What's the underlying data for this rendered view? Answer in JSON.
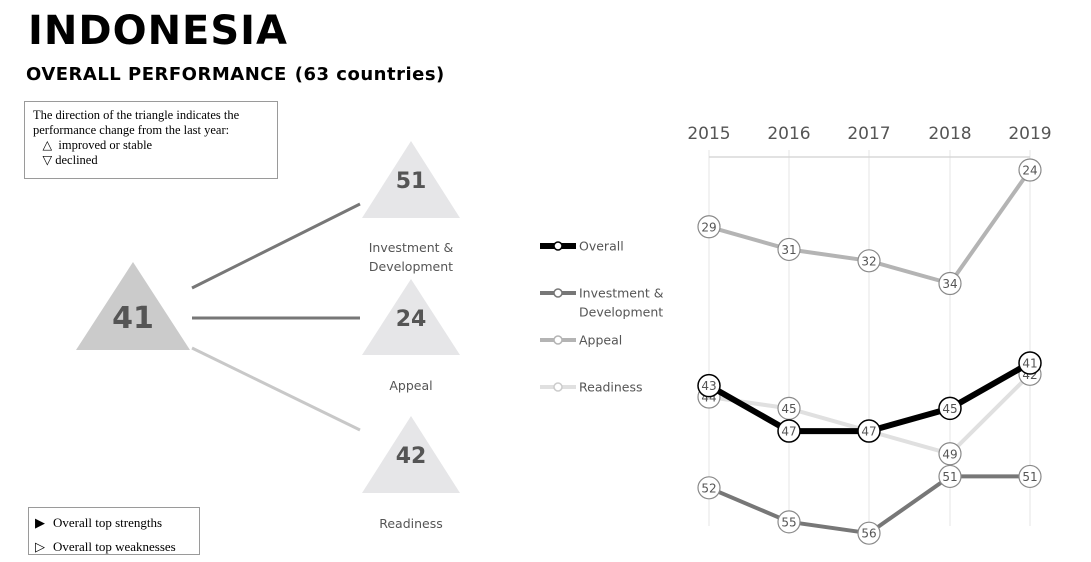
{
  "header": {
    "title": "INDONESIA",
    "subtitle": "OVERALL PERFORMANCE",
    "subtitle_count": "(63 countries)"
  },
  "note": {
    "line1": "The direction of the triangle indicates the",
    "line2": "performance change from the last year:",
    "up_symbol": "△",
    "up_label": "improved or stable",
    "down_symbol": "▽",
    "down_label": "declined"
  },
  "bottom_legend": {
    "strengths_symbol": "▶",
    "strengths_label": "Overall top strengths",
    "weaknesses_symbol": "▷",
    "weaknesses_label": "Overall top weaknesses"
  },
  "triangles": {
    "overall": {
      "value": "41",
      "direction": "up",
      "color": "#cbcbcb"
    },
    "factors": [
      {
        "name": "Investment & Development",
        "label_line1": "Investment &",
        "label_line2": "Development",
        "value": "51",
        "direction": "up",
        "color": "#e6e6e8"
      },
      {
        "name": "Appeal",
        "label_line1": "Appeal",
        "label_line2": "",
        "value": "24",
        "direction": "up",
        "color": "#e6e6e8"
      },
      {
        "name": "Readiness",
        "label_line1": "Readiness",
        "label_line2": "",
        "value": "42",
        "direction": "up",
        "color": "#e6e6e8"
      }
    ]
  },
  "chart_data": {
    "type": "line",
    "x": [
      "2015",
      "2016",
      "2017",
      "2018",
      "2019"
    ],
    "y_inverted": true,
    "ylim": [
      63,
      1
    ],
    "grid": "vertical",
    "legend_placement": "left",
    "series": [
      {
        "name": "Overall",
        "color": "#000000",
        "values": [
          43,
          47,
          47,
          45,
          41
        ]
      },
      {
        "name": "Investment & Development",
        "color": "#777777",
        "values": [
          52,
          55,
          56,
          51,
          51
        ]
      },
      {
        "name": "Appeal",
        "color": "#b4b4b4",
        "values": [
          29,
          31,
          32,
          34,
          24
        ]
      },
      {
        "name": "Readiness",
        "color": "#e0e0e0",
        "values": [
          44,
          45,
          47,
          49,
          42
        ]
      }
    ]
  }
}
